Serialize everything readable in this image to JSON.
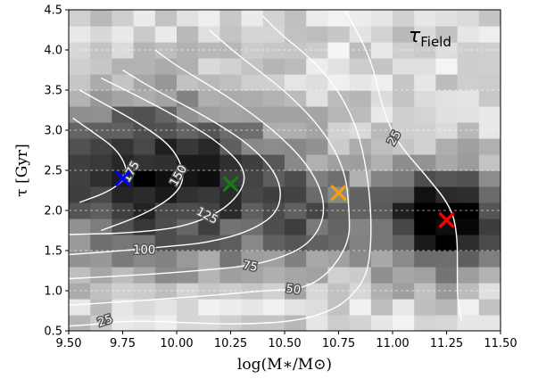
{
  "chart_data": {
    "type": "heatmap",
    "xlabel": "log(M∗/M⊙)",
    "ylabel": "τ [Gyr]",
    "panel_label": {
      "main": "τ",
      "sub": "Field"
    },
    "xlim": [
      9.5,
      11.5
    ],
    "ylim": [
      0.5,
      4.5
    ],
    "x_ticks": [
      "9.50",
      "9.75",
      "10.00",
      "10.25",
      "10.50",
      "10.75",
      "11.00",
      "11.25",
      "11.50"
    ],
    "y_ticks": [
      "0.5",
      "1.0",
      "1.5",
      "2.0",
      "2.5",
      "3.0",
      "3.5",
      "4.0",
      "4.5"
    ],
    "grid": "horizontal dashed",
    "colormap": "greys",
    "cell_size": {
      "dx": 0.1,
      "dy": 0.2
    },
    "contours": [
      {
        "level": "25",
        "label_x": 9.67,
        "label_y": 0.62,
        "label_rot": -18,
        "points": [
          [
            9.5,
            0.56
          ],
          [
            9.62,
            0.58
          ],
          [
            9.75,
            0.62
          ],
          [
            9.9,
            0.62
          ],
          [
            10.05,
            0.6
          ],
          [
            10.3,
            0.58
          ],
          [
            10.55,
            0.62
          ],
          [
            10.72,
            0.75
          ],
          [
            10.82,
            0.95
          ],
          [
            10.88,
            1.2
          ],
          [
            10.9,
            1.55
          ],
          [
            10.9,
            2.0
          ],
          [
            10.88,
            2.5
          ],
          [
            10.84,
            3.0
          ],
          [
            10.75,
            3.5
          ],
          [
            10.62,
            3.9
          ],
          [
            10.48,
            4.2
          ],
          [
            10.4,
            4.42
          ]
        ]
      },
      {
        "level": "25",
        "label_x": 11.01,
        "label_y": 2.9,
        "label_rot": -60,
        "points": [
          [
            10.78,
            4.5
          ],
          [
            10.9,
            3.9
          ],
          [
            10.95,
            3.3
          ],
          [
            11.02,
            2.85
          ],
          [
            11.15,
            2.45
          ],
          [
            11.27,
            2.05
          ],
          [
            11.3,
            1.7
          ],
          [
            11.3,
            1.2
          ],
          [
            11.3,
            0.9
          ],
          [
            11.32,
            0.62
          ]
        ]
      },
      {
        "level": "50",
        "label_x": 10.54,
        "label_y": 1.01,
        "label_rot": 8,
        "points": [
          [
            9.5,
            0.82
          ],
          [
            9.8,
            0.87
          ],
          [
            10.2,
            0.95
          ],
          [
            10.4,
            1.0
          ],
          [
            10.58,
            1.02
          ],
          [
            10.7,
            1.2
          ],
          [
            10.8,
            1.6
          ],
          [
            10.8,
            2.0
          ],
          [
            10.78,
            2.5
          ],
          [
            10.68,
            3.0
          ],
          [
            10.5,
            3.5
          ],
          [
            10.3,
            3.9
          ],
          [
            10.15,
            4.25
          ]
        ]
      },
      {
        "level": "75",
        "label_x": 10.34,
        "label_y": 1.3,
        "label_rot": 12,
        "points": [
          [
            9.5,
            1.15
          ],
          [
            9.85,
            1.2
          ],
          [
            10.1,
            1.25
          ],
          [
            10.3,
            1.3
          ],
          [
            10.45,
            1.38
          ],
          [
            10.6,
            1.55
          ],
          [
            10.68,
            1.85
          ],
          [
            10.68,
            2.2
          ],
          [
            10.6,
            2.6
          ],
          [
            10.45,
            3.0
          ],
          [
            10.25,
            3.4
          ],
          [
            10.0,
            3.8
          ],
          [
            9.9,
            4.0
          ]
        ]
      },
      {
        "level": "100",
        "label_x": 9.85,
        "label_y": 1.5,
        "label_rot": 0,
        "points": [
          [
            9.5,
            1.45
          ],
          [
            9.75,
            1.5
          ],
          [
            9.95,
            1.55
          ],
          [
            10.15,
            1.6
          ],
          [
            10.35,
            1.75
          ],
          [
            10.48,
            2.0
          ],
          [
            10.48,
            2.4
          ],
          [
            10.35,
            2.8
          ],
          [
            10.15,
            3.15
          ],
          [
            9.9,
            3.5
          ],
          [
            9.75,
            3.75
          ]
        ]
      },
      {
        "level": "125",
        "label_x": 10.14,
        "label_y": 1.93,
        "label_rot": 28,
        "points": [
          [
            9.5,
            1.7
          ],
          [
            9.8,
            1.72
          ],
          [
            10.05,
            1.8
          ],
          [
            10.25,
            2.05
          ],
          [
            10.34,
            2.45
          ],
          [
            10.2,
            2.85
          ],
          [
            9.98,
            3.2
          ],
          [
            9.8,
            3.45
          ],
          [
            9.65,
            3.65
          ]
        ]
      },
      {
        "level": "150",
        "label_x": 10.01,
        "label_y": 2.43,
        "label_rot": -60,
        "points": [
          [
            9.65,
            1.75
          ],
          [
            9.85,
            1.95
          ],
          [
            10.0,
            2.2
          ],
          [
            10.04,
            2.45
          ],
          [
            9.98,
            2.8
          ],
          [
            9.82,
            3.1
          ],
          [
            9.65,
            3.35
          ],
          [
            9.55,
            3.5
          ]
        ]
      },
      {
        "level": "175",
        "label_x": 9.79,
        "label_y": 2.48,
        "label_rot": -60,
        "points": [
          [
            9.55,
            2.1
          ],
          [
            9.7,
            2.25
          ],
          [
            9.78,
            2.45
          ],
          [
            9.73,
            2.75
          ],
          [
            9.6,
            3.0
          ],
          [
            9.52,
            3.15
          ]
        ]
      }
    ],
    "markers": [
      {
        "color": "#0000ff",
        "x": 9.75,
        "y": 2.4
      },
      {
        "color": "#1a7a1a",
        "x": 10.25,
        "y": 2.33
      },
      {
        "color": "#f5a100",
        "x": 10.75,
        "y": 2.22
      },
      {
        "color": "#ff0000",
        "x": 11.25,
        "y": 1.88
      }
    ]
  }
}
